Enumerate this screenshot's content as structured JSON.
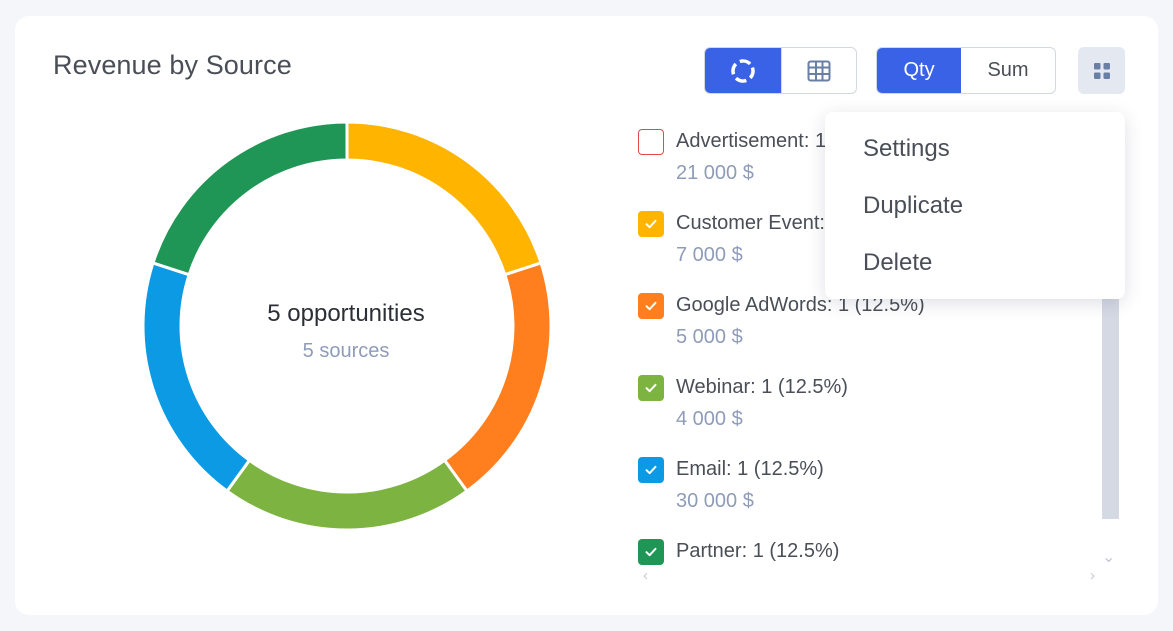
{
  "widget": {
    "title": "Revenue by Source",
    "view_toggle": {
      "chart_icon": "donut-chart-icon",
      "table_icon": "table-icon",
      "active": "chart"
    },
    "mode_toggle": {
      "qty_label": "Qty",
      "sum_label": "Sum",
      "active": "Qty"
    },
    "menu_icon": "grid-dots-icon"
  },
  "center": {
    "main": "5 opportunities",
    "sub": "5 sources"
  },
  "chart_data": {
    "type": "pie",
    "variant": "donut",
    "series": [
      {
        "name": "Customer Event",
        "value": 1,
        "color": "#ffb400"
      },
      {
        "name": "Google AdWords",
        "value": 1,
        "color": "#ff7f1e"
      },
      {
        "name": "Webinar",
        "value": 1,
        "color": "#7db441"
      },
      {
        "name": "Email",
        "value": 1,
        "color": "#0b9ae3"
      },
      {
        "name": "Partner",
        "value": 1,
        "color": "#1f9656"
      }
    ]
  },
  "legend": [
    {
      "label": "Advertisement: 1 (12.5%)",
      "value": "21 000 $",
      "checked": false,
      "color": "#e04a4a"
    },
    {
      "label": "Customer Event: 1 (12.5%)",
      "value": "7 000 $",
      "checked": true,
      "color": "#ffb400"
    },
    {
      "label": "Google AdWords: 1 (12.5%)",
      "value": "5 000 $",
      "checked": true,
      "color": "#ff7f1e"
    },
    {
      "label": "Webinar: 1 (12.5%)",
      "value": "4 000 $",
      "checked": true,
      "color": "#7db441"
    },
    {
      "label": "Email: 1 (12.5%)",
      "value": "30 000 $",
      "checked": true,
      "color": "#0b9ae3"
    },
    {
      "label": "Partner: 1 (12.5%)",
      "value": "",
      "checked": true,
      "color": "#1f9656"
    }
  ],
  "dropdown_menu": {
    "items": [
      {
        "label": "Settings"
      },
      {
        "label": "Duplicate"
      },
      {
        "label": "Delete"
      }
    ]
  },
  "scroll": {
    "down_icon": "chevron-down-icon",
    "left_icon": "chevron-left-icon",
    "right_icon": "chevron-right-icon"
  }
}
